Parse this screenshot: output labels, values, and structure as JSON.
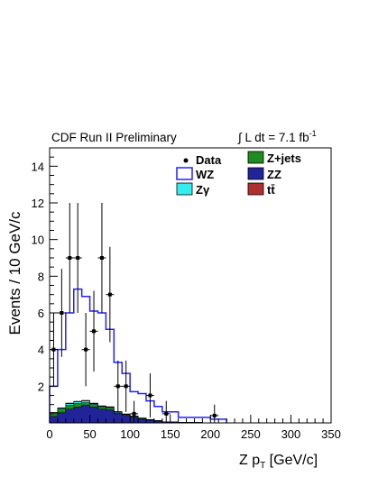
{
  "header": {
    "experiment": "CDF Run II Preliminary",
    "lumi": "∫ L dt = 7.1 fb",
    "lumi_sup": "-1"
  },
  "chart_data": {
    "type": "histogram",
    "xlabel": "Z p",
    "xlabel_sub": "T",
    "xlabel_unit": " [GeV/c]",
    "ylabel": "Events / 10 GeV/c",
    "xlim": [
      0,
      350
    ],
    "ylim": [
      0,
      15
    ],
    "bin_edges": [
      0,
      10,
      20,
      30,
      40,
      50,
      60,
      70,
      80,
      90,
      100,
      110,
      120,
      130,
      140,
      150,
      160,
      170,
      180,
      190,
      200,
      210,
      220
    ],
    "x_ticks": [
      0,
      50,
      100,
      150,
      200,
      250,
      300,
      350
    ],
    "y_ticks": [
      2,
      4,
      6,
      8,
      10,
      12,
      14
    ],
    "legend": [
      {
        "key": "data",
        "label": "Data",
        "color": "#000000"
      },
      {
        "key": "zjets",
        "label": "Z+jets",
        "color": "#1e8c1e"
      },
      {
        "key": "wz",
        "label": "WZ",
        "color": "#2020ff"
      },
      {
        "key": "zz",
        "label": "ZZ",
        "color": "#222299"
      },
      {
        "key": "zgamma",
        "label": "Zγ",
        "color": "#33eeee"
      },
      {
        "key": "ttbar",
        "label": "tt̄",
        "color": "#b03030"
      }
    ],
    "stack": [
      {
        "key": "zz",
        "values": [
          0.35,
          0.55,
          0.75,
          0.85,
          0.95,
          0.85,
          0.75,
          0.7,
          0.5,
          0.4,
          0.3,
          0.2,
          0.15,
          0.1,
          0.05,
          0.05,
          0.03,
          0.02,
          0.02,
          0.01,
          0.01,
          0.01
        ]
      },
      {
        "key": "zjets",
        "values": [
          0.15,
          0.2,
          0.2,
          0.2,
          0.15,
          0.15,
          0.1,
          0.1,
          0.05,
          0.05,
          0.05,
          0.05,
          0.02,
          0.02,
          0.01,
          0.01,
          0,
          0,
          0,
          0,
          0,
          0
        ]
      },
      {
        "key": "zgamma",
        "values": [
          0.05,
          0.05,
          0.1,
          0.1,
          0.1,
          0.05,
          0.05,
          0.05,
          0.05,
          0.02,
          0.02,
          0.01,
          0.01,
          0,
          0,
          0,
          0,
          0,
          0,
          0,
          0,
          0
        ]
      },
      {
        "key": "ttbar",
        "values": [
          0.02,
          0.02,
          0.03,
          0.03,
          0.03,
          0.03,
          0.03,
          0.03,
          0.02,
          0.02,
          0.01,
          0.01,
          0.01,
          0.01,
          0,
          0,
          0,
          0,
          0,
          0,
          0,
          0
        ]
      }
    ],
    "wz_total": [
      2.0,
      4.0,
      6.0,
      7.3,
      6.9,
      6.1,
      6.0,
      5.1,
      3.3,
      2.7,
      1.7,
      1.6,
      1.2,
      0.9,
      0.6,
      0.6,
      0.3,
      0.3,
      0.3,
      0.3,
      0.2,
      0.2
    ],
    "data_points": [
      {
        "x": 5,
        "y": 4,
        "err": 2.0
      },
      {
        "x": 15,
        "y": 6,
        "err": 2.4
      },
      {
        "x": 25,
        "y": 9,
        "err": 3.0
      },
      {
        "x": 35,
        "y": 9,
        "err": 3.0
      },
      {
        "x": 45,
        "y": 4,
        "err": 2.0
      },
      {
        "x": 55,
        "y": 5,
        "err": 2.2
      },
      {
        "x": 65,
        "y": 9,
        "err": 3.0
      },
      {
        "x": 75,
        "y": 7,
        "err": 2.6
      },
      {
        "x": 85,
        "y": 2,
        "err": 1.4
      },
      {
        "x": 95,
        "y": 2,
        "err": 1.4
      },
      {
        "x": 105,
        "y": 0.5,
        "err": 0.7
      },
      {
        "x": 125,
        "y": 1.5,
        "err": 1.2
      },
      {
        "x": 145,
        "y": 0.5,
        "err": 0.7
      },
      {
        "x": 205,
        "y": 0.4,
        "err": 0.6
      }
    ]
  }
}
